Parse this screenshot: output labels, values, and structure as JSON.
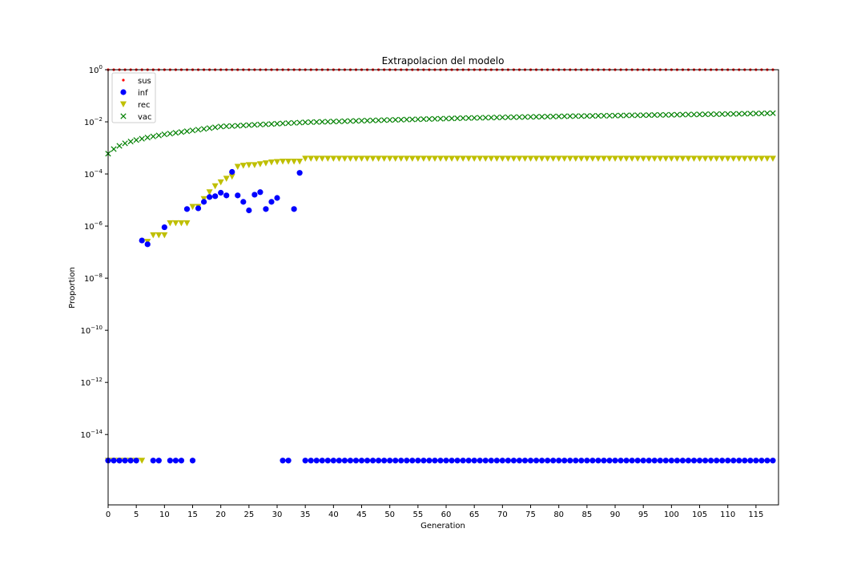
{
  "chart_data": {
    "type": "scatter",
    "title": "Extrapolacion del modelo",
    "xlabel": "Generation",
    "ylabel": "Proportion",
    "xlim": [
      0,
      119
    ],
    "ylim_log10": [
      -16.7,
      0
    ],
    "yscale": "log",
    "grid": false,
    "legend_location": "upper-left",
    "x_ticks": [
      0,
      5,
      10,
      15,
      20,
      25,
      30,
      35,
      40,
      45,
      50,
      55,
      60,
      65,
      70,
      75,
      80,
      85,
      90,
      95,
      100,
      105,
      110,
      115
    ],
    "y_ticks": [
      {
        "exp": 0,
        "label": "10",
        "sup": "0"
      },
      {
        "exp": -2,
        "label": "10",
        "sup": "−2"
      },
      {
        "exp": -4,
        "label": "10",
        "sup": "−4"
      },
      {
        "exp": -6,
        "label": "10",
        "sup": "−6"
      },
      {
        "exp": -8,
        "label": "10",
        "sup": "−8"
      },
      {
        "exp": -10,
        "label": "10",
        "sup": "−10"
      },
      {
        "exp": -12,
        "label": "10",
        "sup": "−12"
      },
      {
        "exp": -14,
        "label": "10",
        "sup": "−14"
      }
    ],
    "series": [
      {
        "name": "sus",
        "marker": "point",
        "color": "#ff0000",
        "x_range": [
          0,
          118
        ],
        "value": 0.999
      },
      {
        "name": "inf",
        "marker": "circle",
        "color": "#0000ff",
        "floor_value": 1e-15,
        "points": [
          [
            0,
            1e-15
          ],
          [
            1,
            1e-15
          ],
          [
            2,
            1e-15
          ],
          [
            3,
            1e-15
          ],
          [
            4,
            1e-15
          ],
          [
            5,
            1e-15
          ],
          [
            6,
            2.8e-07
          ],
          [
            7,
            2e-07
          ],
          [
            8,
            1e-15
          ],
          [
            9,
            1e-15
          ],
          [
            10,
            9e-07
          ],
          [
            11,
            1e-15
          ],
          [
            12,
            1e-15
          ],
          [
            13,
            1e-15
          ],
          [
            14,
            4.5e-06
          ],
          [
            15,
            1e-15
          ],
          [
            16,
            4.8e-06
          ],
          [
            17,
            8.5e-06
          ],
          [
            18,
            1.3e-05
          ],
          [
            19,
            1.4e-05
          ],
          [
            20,
            1.9e-05
          ],
          [
            21,
            1.5e-05
          ],
          [
            22,
            0.00012
          ],
          [
            23,
            1.5e-05
          ],
          [
            24,
            8.5e-06
          ],
          [
            25,
            4e-06
          ],
          [
            26,
            1.6e-05
          ],
          [
            27,
            2e-05
          ],
          [
            28,
            4.5e-06
          ],
          [
            29,
            8.5e-06
          ],
          [
            30,
            1.2e-05
          ],
          [
            31,
            1e-15
          ],
          [
            32,
            1e-15
          ],
          [
            33,
            4.5e-06
          ],
          [
            34,
            0.00011
          ],
          [
            35,
            1e-15
          ],
          [
            36,
            1e-15
          ],
          [
            37,
            1e-15
          ],
          [
            38,
            1e-15
          ],
          [
            39,
            1e-15
          ],
          [
            40,
            1e-15
          ],
          [
            41,
            1e-15
          ],
          [
            42,
            1e-15
          ],
          [
            43,
            1e-15
          ],
          [
            44,
            1e-15
          ],
          [
            45,
            1e-15
          ],
          [
            46,
            1e-15
          ],
          [
            47,
            1e-15
          ],
          [
            48,
            1e-15
          ],
          [
            49,
            1e-15
          ],
          [
            50,
            1e-15
          ],
          [
            51,
            1e-15
          ],
          [
            52,
            1e-15
          ],
          [
            53,
            1e-15
          ],
          [
            54,
            1e-15
          ],
          [
            55,
            1e-15
          ],
          [
            56,
            1e-15
          ],
          [
            57,
            1e-15
          ],
          [
            58,
            1e-15
          ],
          [
            59,
            1e-15
          ],
          [
            60,
            1e-15
          ],
          [
            61,
            1e-15
          ],
          [
            62,
            1e-15
          ],
          [
            63,
            1e-15
          ],
          [
            64,
            1e-15
          ],
          [
            65,
            1e-15
          ],
          [
            66,
            1e-15
          ],
          [
            67,
            1e-15
          ],
          [
            68,
            1e-15
          ],
          [
            69,
            1e-15
          ],
          [
            70,
            1e-15
          ],
          [
            71,
            1e-15
          ],
          [
            72,
            1e-15
          ],
          [
            73,
            1e-15
          ],
          [
            74,
            1e-15
          ],
          [
            75,
            1e-15
          ],
          [
            76,
            1e-15
          ],
          [
            77,
            1e-15
          ],
          [
            78,
            1e-15
          ],
          [
            79,
            1e-15
          ],
          [
            80,
            1e-15
          ],
          [
            81,
            1e-15
          ],
          [
            82,
            1e-15
          ],
          [
            83,
            1e-15
          ],
          [
            84,
            1e-15
          ],
          [
            85,
            1e-15
          ],
          [
            86,
            1e-15
          ],
          [
            87,
            1e-15
          ],
          [
            88,
            1e-15
          ],
          [
            89,
            1e-15
          ],
          [
            90,
            1e-15
          ],
          [
            91,
            1e-15
          ],
          [
            92,
            1e-15
          ],
          [
            93,
            1e-15
          ],
          [
            94,
            1e-15
          ],
          [
            95,
            1e-15
          ],
          [
            96,
            1e-15
          ],
          [
            97,
            1e-15
          ],
          [
            98,
            1e-15
          ],
          [
            99,
            1e-15
          ],
          [
            100,
            1e-15
          ],
          [
            101,
            1e-15
          ],
          [
            102,
            1e-15
          ],
          [
            103,
            1e-15
          ],
          [
            104,
            1e-15
          ],
          [
            105,
            1e-15
          ],
          [
            106,
            1e-15
          ],
          [
            107,
            1e-15
          ],
          [
            108,
            1e-15
          ],
          [
            109,
            1e-15
          ],
          [
            110,
            1e-15
          ],
          [
            111,
            1e-15
          ],
          [
            112,
            1e-15
          ],
          [
            113,
            1e-15
          ],
          [
            114,
            1e-15
          ],
          [
            115,
            1e-15
          ],
          [
            116,
            1e-15
          ],
          [
            117,
            1e-15
          ],
          [
            118,
            1e-15
          ]
        ]
      },
      {
        "name": "rec",
        "marker": "triangle-down",
        "color": "#bfbf00",
        "points": [
          [
            0,
            1e-15
          ],
          [
            1,
            1e-15
          ],
          [
            2,
            1e-15
          ],
          [
            3,
            1e-15
          ],
          [
            4,
            1e-15
          ],
          [
            5,
            1e-15
          ],
          [
            6,
            1e-15
          ],
          [
            7,
            2.5e-07
          ],
          [
            8,
            4.5e-07
          ],
          [
            9,
            4.5e-07
          ],
          [
            10,
            4.5e-07
          ],
          [
            11,
            1.3e-06
          ],
          [
            12,
            1.3e-06
          ],
          [
            13,
            1.3e-06
          ],
          [
            14,
            1.3e-06
          ],
          [
            15,
            5.5e-06
          ],
          [
            16,
            5.5e-06
          ],
          [
            17,
            1.1e-05
          ],
          [
            18,
            2e-05
          ],
          [
            19,
            3.4e-05
          ],
          [
            20,
            4.8e-05
          ],
          [
            21,
            6.6e-05
          ],
          [
            22,
            8e-05
          ],
          [
            23,
            0.00019
          ],
          [
            24,
            0.00021
          ],
          [
            25,
            0.00022
          ],
          [
            26,
            0.00022
          ],
          [
            27,
            0.00024
          ],
          [
            28,
            0.00026
          ],
          [
            29,
            0.00028
          ],
          [
            30,
            0.00029
          ],
          [
            31,
            0.0003
          ],
          [
            32,
            0.0003
          ],
          [
            33,
            0.0003
          ],
          [
            34,
            0.0003
          ]
        ],
        "plateau_value": 0.00039,
        "plateau_x_range": [
          35,
          118
        ]
      },
      {
        "name": "vac",
        "marker": "x",
        "color": "#008000",
        "x_range": [
          0,
          118
        ],
        "first_values": [
          0.0006,
          0.0009,
          0.0012,
          0.0015,
          0.00175,
          0.002,
          0.00225,
          0.0025,
          0.00275,
          0.003,
          0.0033
        ],
        "curve_points": [
          [
            10,
            0.0033
          ],
          [
            20,
            0.0066
          ],
          [
            35,
            0.0096
          ],
          [
            50,
            0.0118
          ],
          [
            65,
            0.0142
          ],
          [
            80,
            0.0162
          ],
          [
            95,
            0.018
          ],
          [
            110,
            0.02
          ],
          [
            118,
            0.0215
          ]
        ]
      }
    ]
  }
}
